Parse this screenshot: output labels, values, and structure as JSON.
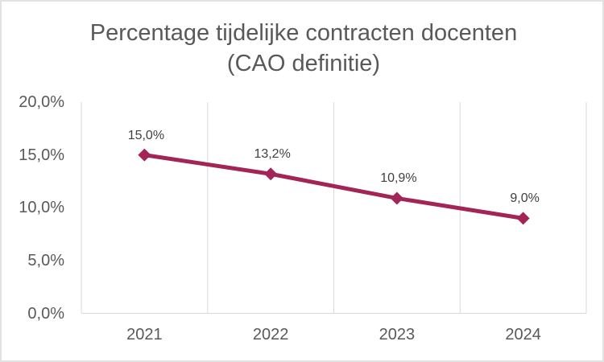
{
  "chart_data": {
    "type": "line",
    "title": "Percentage tijdelijke contracten docenten (CAO definitie)",
    "title_lines": [
      "Percentage tijdelijke contracten docenten",
      "(CAO definitie)"
    ],
    "categories": [
      "2021",
      "2022",
      "2023",
      "2024"
    ],
    "values": [
      15.0,
      13.2,
      10.9,
      9.0
    ],
    "value_labels": [
      "15,0%",
      "13,2%",
      "10,9%",
      "9,0%"
    ],
    "xlabel": "",
    "ylabel": "",
    "ylim": [
      0,
      20
    ],
    "yticks": [
      0,
      5,
      10,
      15,
      20
    ],
    "ytick_labels": [
      "0,0%",
      "5,0%",
      "10,0%",
      "15,0%",
      "20,0%"
    ],
    "grid": "vertical-major-only",
    "legend": "none",
    "marker": "diamond",
    "decimal_separator": ","
  },
  "colors": {
    "line": "#A32456",
    "marker": "#A32456",
    "title_text": "#595959",
    "axis_text": "#595959",
    "data_label_text": "#404040",
    "gridline": "#D9D9D9",
    "axis_line": "#D9D9D9",
    "background": "#FFFFFF",
    "frame_border": "#E2E2E2"
  }
}
